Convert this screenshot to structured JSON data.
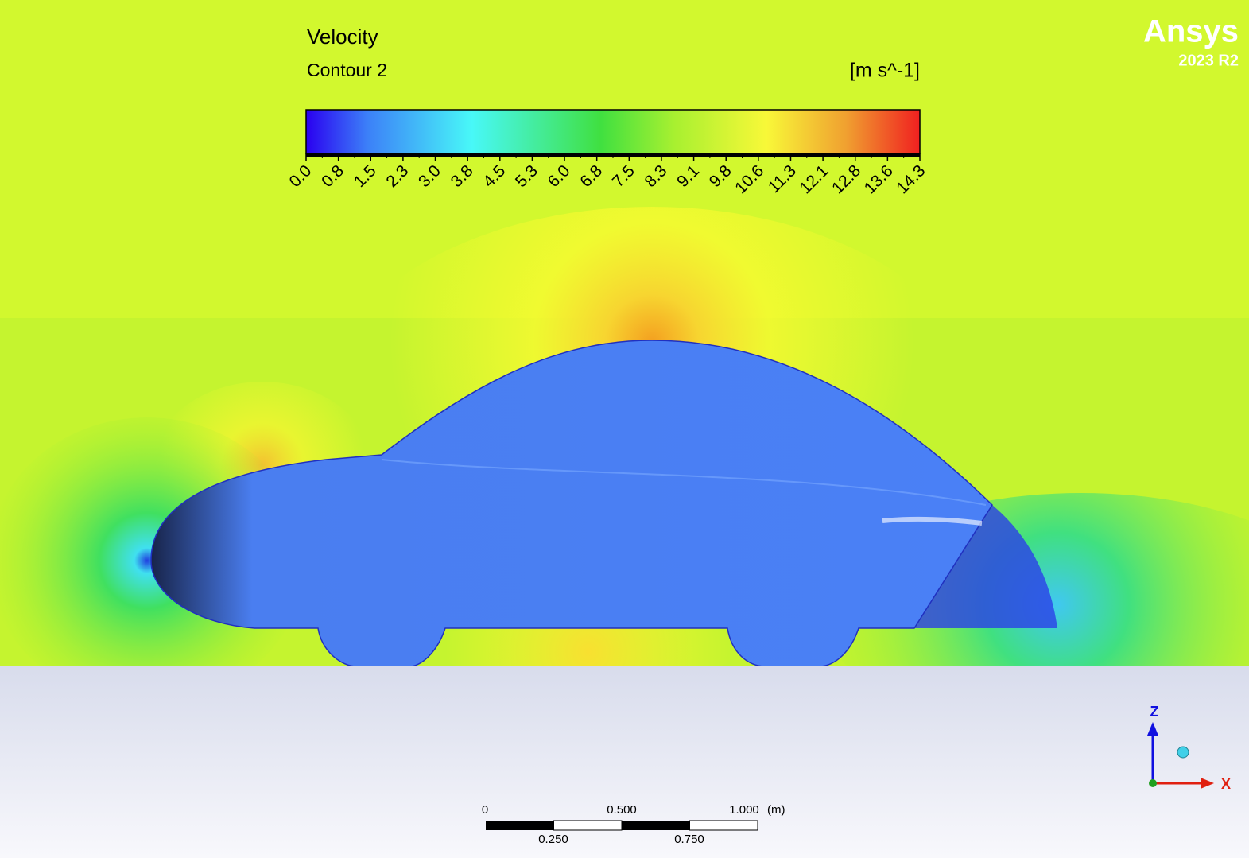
{
  "legend": {
    "title": "Velocity",
    "subtitle": "Contour 2",
    "unit": "[m s^-1]",
    "ticks": [
      "0.0",
      "0.8",
      "1.5",
      "2.3",
      "3.0",
      "3.8",
      "4.5",
      "5.3",
      "6.0",
      "6.8",
      "7.5",
      "8.3",
      "9.1",
      "9.8",
      "10.6",
      "11.3",
      "12.1",
      "12.8",
      "13.6",
      "14.3"
    ]
  },
  "logo": {
    "name": "Ansys",
    "version": "2023 R2"
  },
  "scale_bar": {
    "top_labels": [
      "0",
      "0.500",
      "1.000"
    ],
    "unit": "(m)",
    "bottom_labels": [
      "0.250",
      "0.750"
    ]
  },
  "triad": {
    "z": "Z",
    "x": "X"
  }
}
